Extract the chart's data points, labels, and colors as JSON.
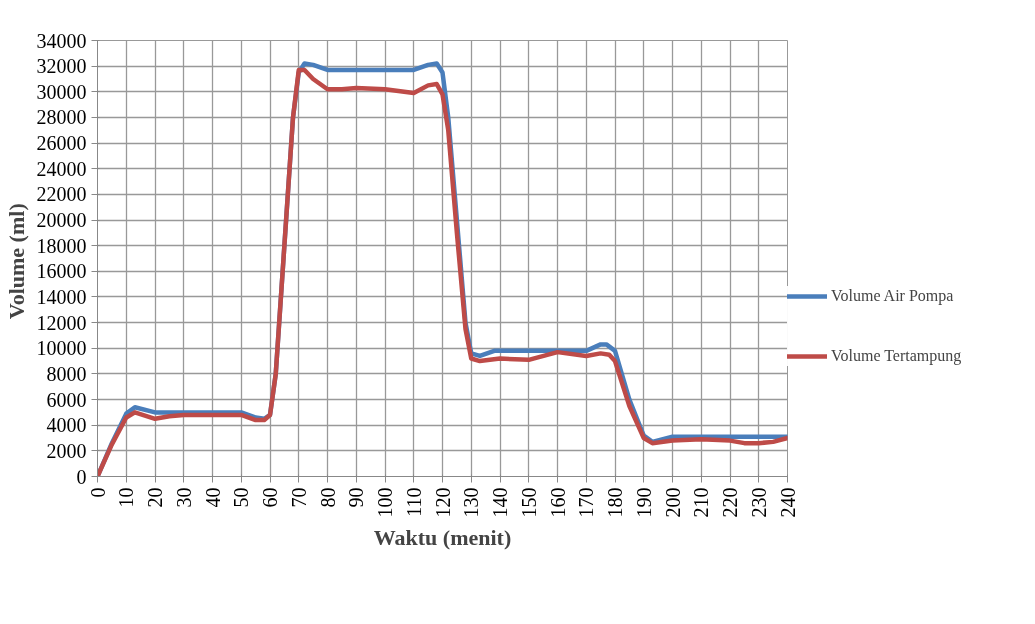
{
  "chart_data": {
    "type": "line",
    "xlabel": "Waktu (menit)",
    "ylabel": "Volume  (ml)",
    "xlim": [
      0,
      240
    ],
    "xticks": [
      0,
      10,
      20,
      30,
      40,
      50,
      60,
      70,
      80,
      90,
      100,
      110,
      120,
      130,
      140,
      150,
      160,
      170,
      180,
      190,
      200,
      210,
      220,
      230,
      240
    ],
    "ylim": [
      0,
      34000
    ],
    "yticks": [
      0,
      2000,
      4000,
      6000,
      8000,
      10000,
      12000,
      14000,
      16000,
      18000,
      20000,
      22000,
      24000,
      26000,
      28000,
      30000,
      32000,
      34000
    ],
    "grid": true,
    "legend": "right",
    "marker": "none",
    "line_style": "solid",
    "series": [
      {
        "name": "Volume Air Pompa",
        "color": "#4a7ebb",
        "x": [
          0,
          5,
          10,
          13,
          20,
          30,
          40,
          50,
          55,
          58,
          60,
          62,
          65,
          68,
          70,
          72,
          75,
          80,
          90,
          100,
          110,
          115,
          118,
          120,
          122,
          125,
          128,
          130,
          133,
          138,
          140,
          150,
          160,
          170,
          175,
          177,
          180,
          185,
          190,
          193,
          200,
          210,
          220,
          230,
          240
        ],
        "values": [
          0,
          2600,
          4900,
          5400,
          5000,
          5000,
          5000,
          5000,
          4600,
          4500,
          4800,
          8000,
          18000,
          28000,
          31500,
          32200,
          32100,
          31700,
          31700,
          31700,
          31700,
          32100,
          32200,
          31500,
          28000,
          20000,
          12000,
          9600,
          9400,
          9800,
          9800,
          9800,
          9800,
          9800,
          10300,
          10300,
          9800,
          6000,
          3200,
          2700,
          3100,
          3100,
          3100,
          3100,
          3100
        ]
      },
      {
        "name": "Volume Tertampung",
        "color": "#be4b48",
        "x": [
          0,
          5,
          10,
          13,
          20,
          25,
          30,
          40,
          50,
          55,
          58,
          60,
          62,
          65,
          68,
          70,
          72,
          75,
          80,
          85,
          90,
          100,
          110,
          115,
          118,
          120,
          122,
          125,
          128,
          130,
          133,
          140,
          150,
          160,
          170,
          175,
          178,
          180,
          185,
          190,
          193,
          200,
          210,
          220,
          225,
          230,
          235,
          240
        ],
        "values": [
          0,
          2500,
          4600,
          5000,
          4500,
          4700,
          4800,
          4800,
          4800,
          4400,
          4400,
          4800,
          8000,
          18000,
          28000,
          31700,
          31700,
          31000,
          30200,
          30200,
          30300,
          30200,
          29900,
          30500,
          30600,
          29800,
          27000,
          19000,
          11500,
          9200,
          9000,
          9200,
          9100,
          9700,
          9400,
          9600,
          9500,
          9000,
          5500,
          3000,
          2600,
          2800,
          2900,
          2800,
          2600,
          2600,
          2700,
          3000
        ]
      }
    ]
  }
}
